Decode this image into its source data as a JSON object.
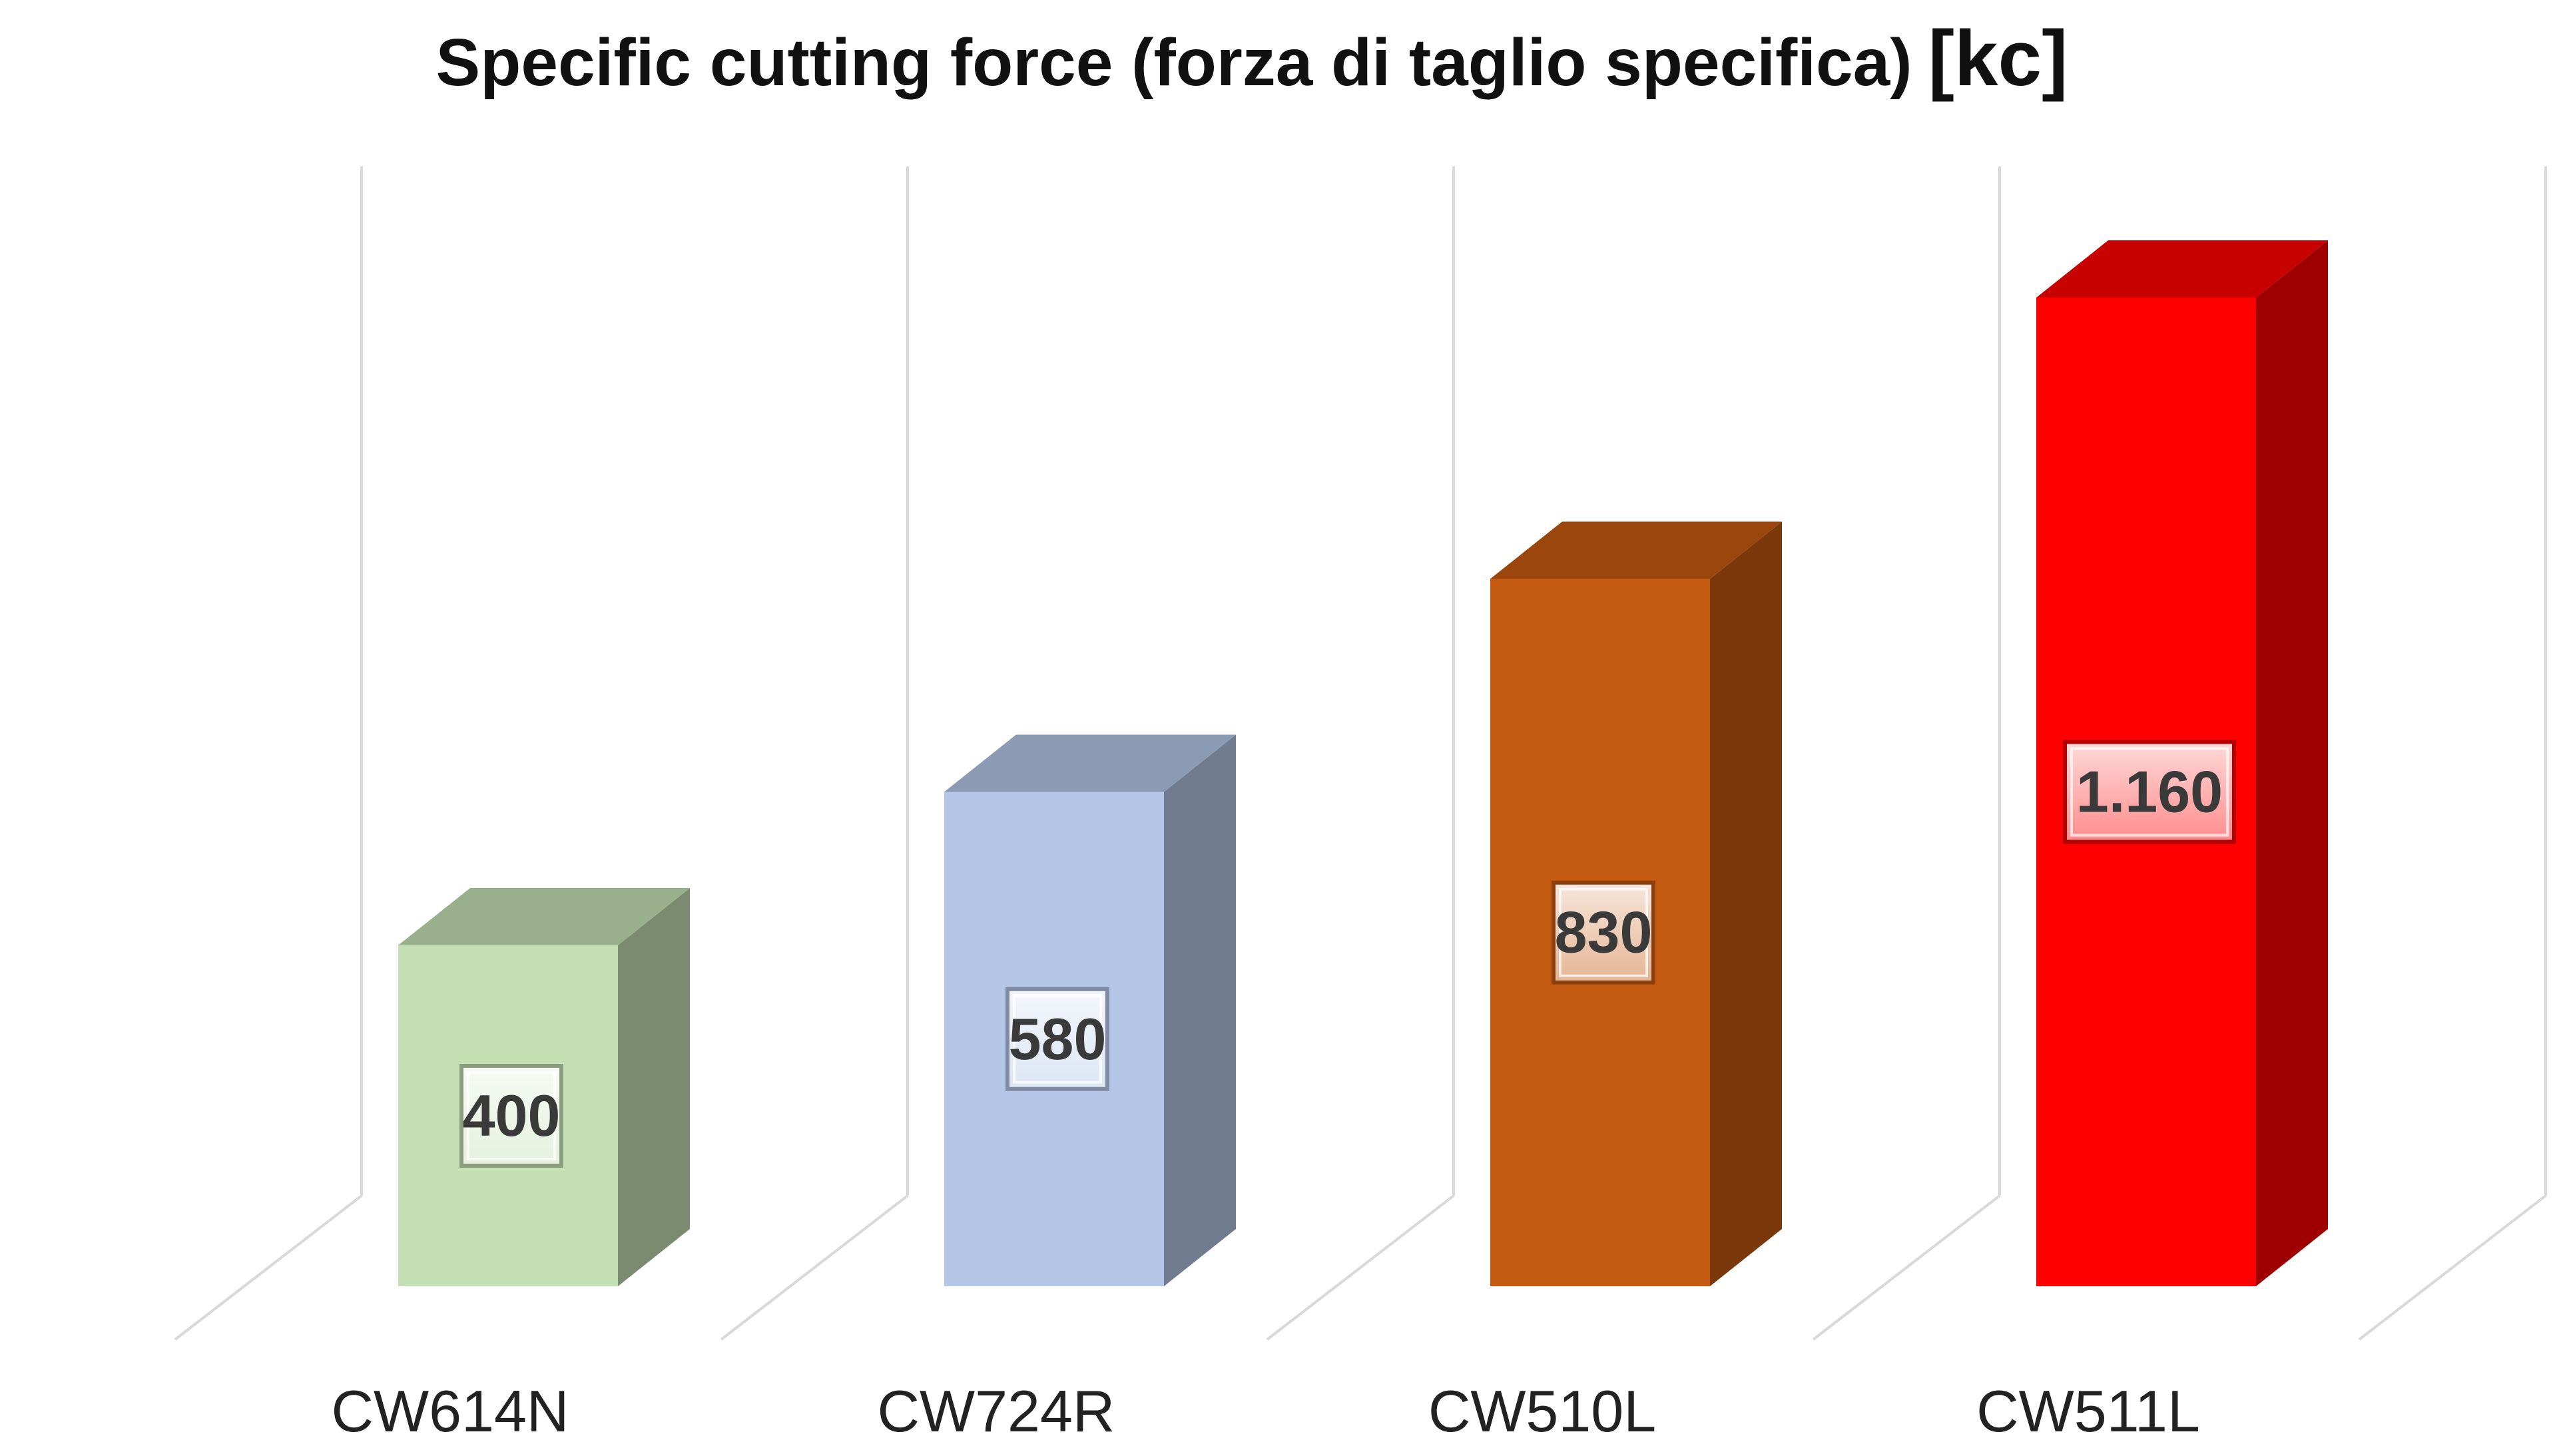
{
  "chart_data": {
    "type": "bar",
    "style": "3d-column",
    "title": "Specific cutting force (forza di taglio specifica)",
    "title_unit": "[kc]",
    "categories": [
      "CW614N",
      "CW724R",
      "CW510L",
      "CW511L"
    ],
    "values": [
      400,
      580,
      830,
      1160
    ],
    "data_labels": [
      "400",
      "580",
      "830",
      "1.160"
    ],
    "colors": [
      "#c5e0b4",
      "#b4c7e7",
      "#c55a11",
      "#ff0000"
    ],
    "ylim": [
      0,
      1160
    ],
    "grid": false,
    "legend": "none"
  }
}
